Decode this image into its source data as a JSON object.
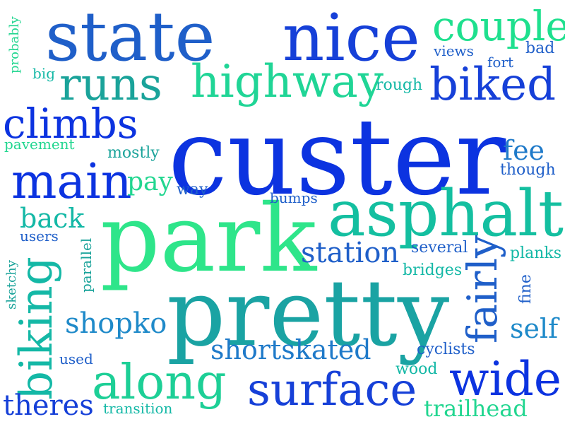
{
  "palette": {
    "royal_blue": "#1640d8",
    "deep_blue": "#0c33e0",
    "mid_blue": "#1f5fc9",
    "teal": "#1aa3a3",
    "cyan_teal": "#14b8a6",
    "mint": "#1ee08e",
    "green": "#2ee58a"
  },
  "words": [
    {
      "text": "custer"
    },
    {
      "text": "state"
    },
    {
      "text": "nice"
    },
    {
      "text": "couple"
    },
    {
      "text": "runs"
    },
    {
      "text": "highway"
    },
    {
      "text": "biked"
    },
    {
      "text": "climbs"
    },
    {
      "text": "main"
    },
    {
      "text": "park"
    },
    {
      "text": "asphalt"
    },
    {
      "text": "pretty"
    },
    {
      "text": "biking"
    },
    {
      "text": "along"
    },
    {
      "text": "surface"
    },
    {
      "text": "wide"
    },
    {
      "text": "fairly"
    },
    {
      "text": "station"
    },
    {
      "text": "shopko"
    },
    {
      "text": "shortskated"
    },
    {
      "text": "theres"
    },
    {
      "text": "back"
    },
    {
      "text": "pay"
    },
    {
      "text": "fee"
    },
    {
      "text": "self"
    },
    {
      "text": "trailhead"
    },
    {
      "text": "probably"
    },
    {
      "text": "big"
    },
    {
      "text": "views"
    },
    {
      "text": "fort"
    },
    {
      "text": "bad"
    },
    {
      "text": "rough"
    },
    {
      "text": "pavement"
    },
    {
      "text": "mostly"
    },
    {
      "text": "way"
    },
    {
      "text": "though"
    },
    {
      "text": "bumps"
    },
    {
      "text": "users"
    },
    {
      "text": "sketchy"
    },
    {
      "text": "parallel"
    },
    {
      "text": "several"
    },
    {
      "text": "planks"
    },
    {
      "text": "bridges"
    },
    {
      "text": "fine"
    },
    {
      "text": "cyclists"
    },
    {
      "text": "used"
    },
    {
      "text": "wood"
    },
    {
      "text": "transition"
    }
  ]
}
